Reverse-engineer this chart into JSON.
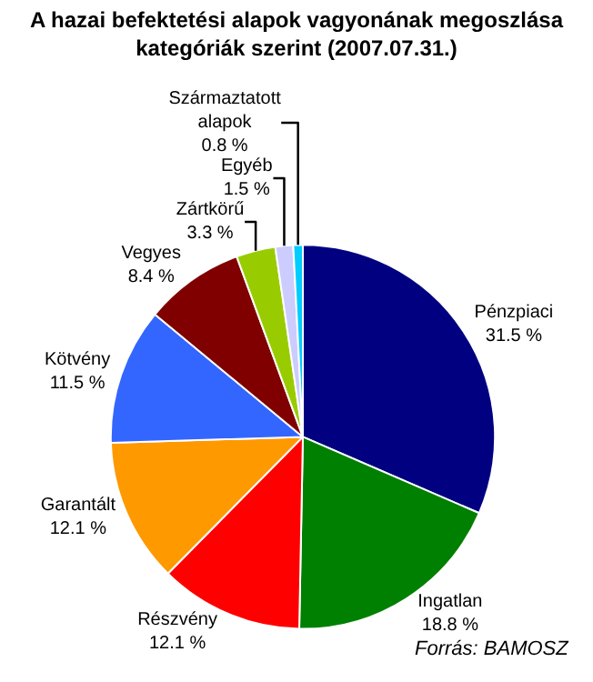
{
  "chart_data": {
    "type": "pie",
    "title": "A hazai befektetési alapok vagyonának megoszlása kategóriák szerint (2007.07.31.)",
    "categories": [
      "Pénzpiaci",
      "Ingatlan",
      "Részvény",
      "Garantált",
      "Kötvény",
      "Vegyes",
      "Zártkörű",
      "Egyéb",
      "Származtatott alapok"
    ],
    "values": [
      31.5,
      18.8,
      12.1,
      12.1,
      11.5,
      8.4,
      3.3,
      1.5,
      0.8
    ],
    "value_labels": [
      "31.5 %",
      "18.8 %",
      "12.1 %",
      "12.1 %",
      "11.5 %",
      "8.4 %",
      "3.3 %",
      "1.5 %",
      "0.8 %"
    ],
    "colors": [
      "#000080",
      "#008000",
      "#ff0000",
      "#ff9900",
      "#3366ff",
      "#800000",
      "#99cc00",
      "#ccccff",
      "#00ccff"
    ],
    "legend": false,
    "annotations": [
      "Forrás: BAMOSZ"
    ]
  }
}
